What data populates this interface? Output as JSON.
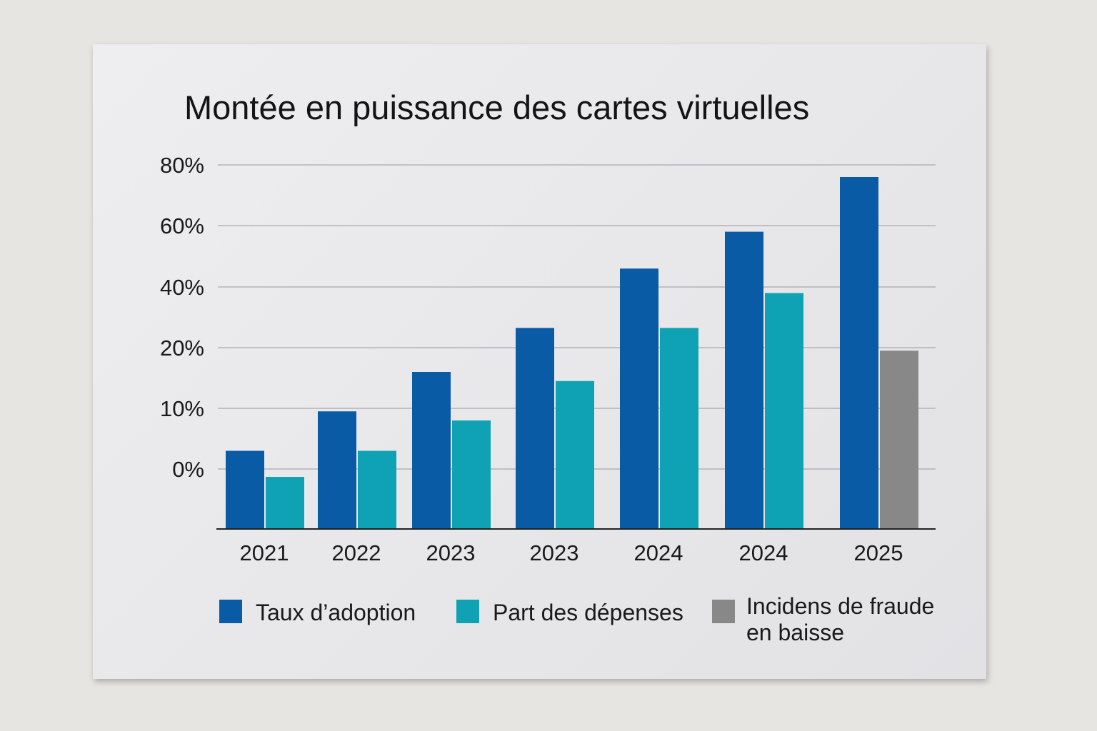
{
  "chart_data": {
    "type": "bar",
    "title": "Montée en puissance des cartes virtuelles",
    "xlabel": "",
    "ylabel": "",
    "categories": [
      "2021",
      "2022",
      "2023",
      "2023",
      "2024",
      "2024",
      "2025"
    ],
    "y_tick_labels": [
      "0%",
      "10%",
      "20%",
      "40%",
      "60%",
      "80%"
    ],
    "y_tick_values": [
      0,
      10,
      20,
      40,
      60,
      80
    ],
    "grid": true,
    "legend_position": "bottom",
    "series": [
      {
        "name": "Taux d’adoption",
        "color": "#0a5ba6",
        "values": [
          3,
          9.5,
          16,
          26.5,
          46,
          58,
          76
        ]
      },
      {
        "name": "Part des dépenses",
        "color": "#0fa2b4",
        "values": [
          -1.3,
          3,
          8,
          14.5,
          26.5,
          38,
          null
        ]
      },
      {
        "name": "Incidens de fraude en baisse",
        "name_lines": [
          "Incidens de fraude",
          "en baisse"
        ],
        "color": "#888888",
        "values": [
          null,
          null,
          null,
          null,
          null,
          null,
          19.5
        ]
      }
    ]
  }
}
